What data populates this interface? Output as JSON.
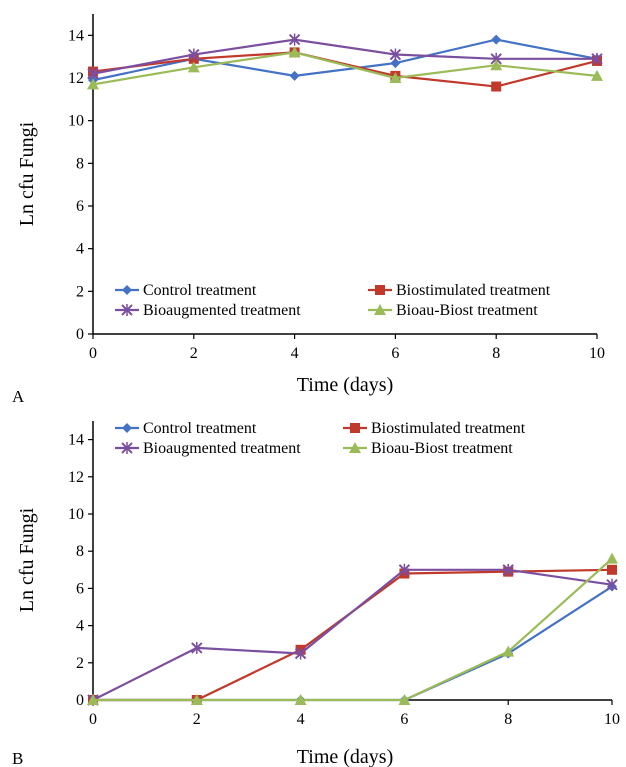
{
  "chart_data": [
    {
      "type": "line",
      "panel_label": "A",
      "xlabel": "Time (days)",
      "ylabel": "Ln cfu Fungi",
      "x": [
        0,
        2,
        4,
        6,
        8,
        10
      ],
      "xticks": [
        "0",
        "2",
        "4",
        "6",
        "8",
        "10"
      ],
      "yticks": [
        "0",
        "2",
        "4",
        "6",
        "8",
        "10",
        "12",
        "14"
      ],
      "xlim": [
        0,
        10
      ],
      "ylim": [
        0,
        15
      ],
      "grid": false,
      "legend_position": "bottom",
      "series": [
        {
          "name": "Control treatment",
          "color": "#4472C4",
          "marker": "diamond",
          "values": [
            11.9,
            12.9,
            12.1,
            12.7,
            13.8,
            12.9
          ]
        },
        {
          "name": "Biostimulated treatment",
          "color": "#C0392B",
          "marker": "square",
          "values": [
            12.3,
            12.9,
            13.2,
            12.1,
            11.6,
            12.8
          ]
        },
        {
          "name": "Bioaugmented treatment",
          "color": "#7B4FA0",
          "marker": "cross",
          "values": [
            12.2,
            13.1,
            13.8,
            13.1,
            12.9,
            12.9
          ]
        },
        {
          "name": "Bioau-Biost treatment",
          "color": "#9BBB59",
          "marker": "triangle",
          "values": [
            11.7,
            12.5,
            13.2,
            12.0,
            12.6,
            12.1
          ]
        }
      ]
    },
    {
      "type": "line",
      "panel_label": "B",
      "xlabel": "Time (days)",
      "ylabel": "Ln cfu Fungi",
      "x": [
        0,
        2,
        4,
        6,
        8,
        10
      ],
      "xticks": [
        "0",
        "2",
        "4",
        "6",
        "8",
        "10"
      ],
      "yticks": [
        "0",
        "2",
        "4",
        "6",
        "8",
        "10",
        "12",
        "14"
      ],
      "xlim": [
        0,
        10
      ],
      "ylim": [
        0,
        15
      ],
      "grid": false,
      "legend_position": "top",
      "series": [
        {
          "name": "Control treatment",
          "color": "#4472C4",
          "marker": "diamond",
          "values": [
            0,
            0,
            0,
            0,
            2.5,
            6.1
          ]
        },
        {
          "name": "Biostimulated treatment",
          "color": "#C0392B",
          "marker": "square",
          "values": [
            0,
            0,
            2.7,
            6.8,
            6.9,
            7.0
          ]
        },
        {
          "name": "Bioaugmented treatment",
          "color": "#7B4FA0",
          "marker": "cross",
          "values": [
            0,
            2.8,
            2.5,
            7.0,
            7.0,
            6.2
          ]
        },
        {
          "name": "Bioau-Biost treatment",
          "color": "#9BBB59",
          "marker": "triangle",
          "values": [
            0,
            0,
            0,
            0,
            2.6,
            7.6
          ]
        }
      ]
    }
  ]
}
